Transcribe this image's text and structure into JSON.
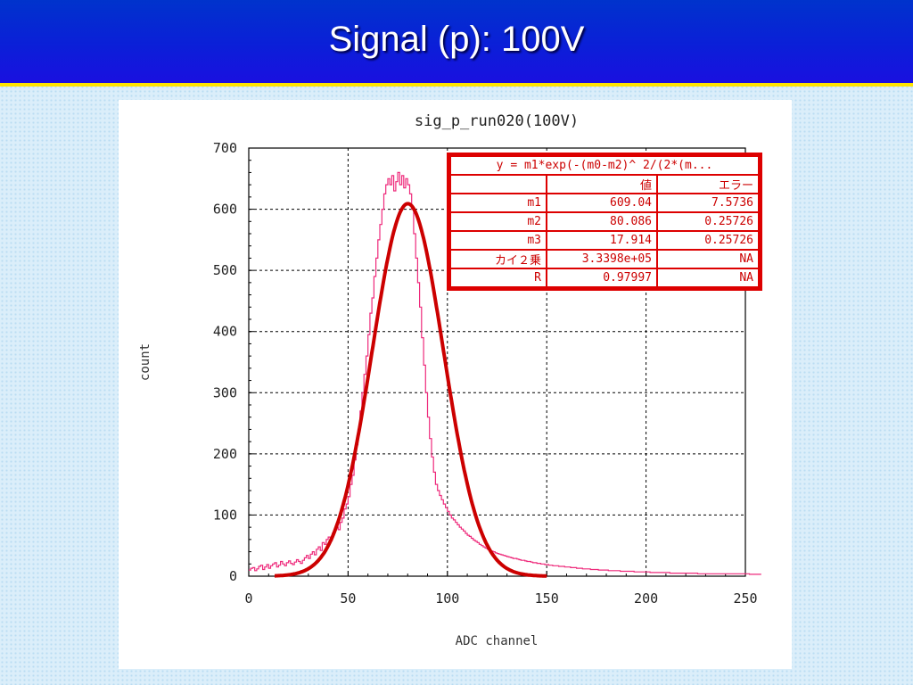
{
  "slide": {
    "title": "Signal (p):  100V"
  },
  "chart_data": {
    "type": "histogram",
    "title": "sig_p_run020(100V)",
    "xlabel": "ADC channel",
    "ylabel": "count",
    "xlim": [
      0,
      250
    ],
    "ylim": [
      0,
      700
    ],
    "xticks": [
      "0",
      "50",
      "100",
      "150",
      "200",
      "250"
    ],
    "yticks": [
      "0",
      "100",
      "200",
      "300",
      "400",
      "500",
      "600",
      "700"
    ],
    "grid": true,
    "colors": {
      "histogram": "#ee2a7b",
      "fit": "#cc0000"
    },
    "fit": {
      "function": "gaussian",
      "m1": 609.04,
      "m2": 80.086,
      "m3": 17.914,
      "x_range": [
        13,
        150
      ]
    },
    "histogram": {
      "bin_width": 1,
      "x_start": 0,
      "counts": [
        10,
        13,
        14,
        9,
        12,
        16,
        18,
        11,
        15,
        19,
        13,
        17,
        20,
        22,
        15,
        18,
        24,
        20,
        17,
        22,
        25,
        21,
        19,
        23,
        27,
        24,
        21,
        26,
        30,
        34,
        29,
        36,
        40,
        35,
        44,
        48,
        42,
        55,
        52,
        60,
        64,
        58,
        70,
        75,
        80,
        76,
        88,
        95,
        110,
        118,
        130,
        150,
        165,
        190,
        215,
        240,
        270,
        300,
        330,
        360,
        395,
        430,
        455,
        490,
        520,
        550,
        575,
        600,
        625,
        640,
        650,
        640,
        655,
        630,
        645,
        660,
        640,
        655,
        635,
        650,
        640,
        625,
        600,
        560,
        520,
        480,
        440,
        390,
        345,
        300,
        260,
        225,
        195,
        170,
        150,
        140,
        132,
        125,
        118,
        112,
        106,
        100,
        95,
        92,
        88,
        84,
        80,
        77,
        74,
        70,
        67,
        65,
        62,
        59,
        57,
        55,
        52,
        50,
        48,
        46,
        44,
        42,
        41,
        40,
        38,
        37,
        36,
        35,
        34,
        33,
        32,
        31,
        30,
        29,
        29,
        28,
        27,
        26,
        26,
        25,
        24,
        24,
        23,
        22,
        22,
        21,
        21,
        20,
        20,
        19,
        19,
        18,
        18,
        17,
        17,
        17,
        16,
        16,
        16,
        15,
        15,
        15,
        14,
        14,
        14,
        13,
        13,
        13,
        12,
        12,
        12,
        12,
        11,
        11,
        11,
        11,
        10,
        10,
        10,
        10,
        10,
        9,
        9,
        9,
        9,
        9,
        9,
        8,
        8,
        8,
        8,
        8,
        8,
        8,
        7,
        7,
        7,
        7,
        7,
        7,
        7,
        7,
        6,
        6,
        6,
        6,
        6,
        6,
        6,
        6,
        6,
        6,
        5,
        5,
        5,
        5,
        5,
        5,
        5,
        5,
        5,
        5,
        5,
        5,
        5,
        5,
        4,
        4,
        4,
        4,
        4,
        4,
        4,
        4,
        4,
        4,
        4,
        4,
        4,
        4,
        4,
        4,
        4,
        4,
        4,
        4,
        4,
        4,
        4,
        4,
        4,
        4,
        3,
        3,
        3,
        3,
        3,
        3
      ]
    },
    "stats_table": {
      "formula": "y = m1*exp(-(m0-m2)^ 2/(2*(m...",
      "headers": [
        "",
        "値",
        "エラー"
      ],
      "rows": [
        [
          "m1",
          "609.04",
          "7.5736"
        ],
        [
          "m2",
          "80.086",
          "0.25726"
        ],
        [
          "m3",
          "17.914",
          "0.25726"
        ],
        [
          "カイ２乗",
          "3.3398e+05",
          "NA"
        ],
        [
          "R",
          "0.97997",
          "NA"
        ]
      ]
    }
  }
}
